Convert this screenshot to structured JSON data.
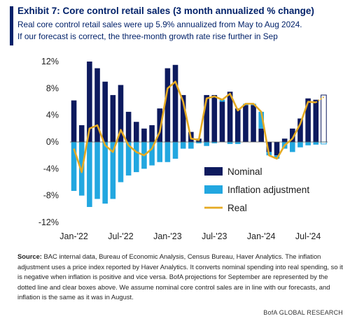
{
  "header": {
    "title": "Exhibit 7: Core control retail sales (3 month annualized % change)",
    "subtitle_lines": [
      "Real core control retail sales were up 5.9% annualized from May to Aug 2024.",
      "If our forecast is correct, the three-month growth rate rise further in Sep"
    ]
  },
  "footer": {
    "source_label": "Source:",
    "source_text": " BAC internal data, Bureau of Economic Analysis, Census Bureau, Haver Analytics. The inflation adjustment uses a price index reported by Haver Analytics. It converts nominal spending into real spending, so it is negative when inflation is positive and vice versa. BofA projections for September are represented by the dotted line and clear boxes above. We assume nominal core control sales are in line with our forecasts, and inflation is the same as it was in August.",
    "brand": "BofA GLOBAL RESEARCH"
  },
  "colors": {
    "nominal": "#0d1a5e",
    "inflation": "#22a7e0",
    "real": "#e5aa22",
    "title": "#012169"
  },
  "chart_data": {
    "type": "bar",
    "stacked": true,
    "ylim": [
      -12,
      12
    ],
    "yticks": [
      "12%",
      "8%",
      "4%",
      "0%",
      "-4%",
      "-8%",
      "-12%"
    ],
    "ytick_values": [
      12,
      8,
      4,
      0,
      -4,
      -8,
      -12
    ],
    "xtick_labels": [
      "Jan-'22",
      "Jul-'22",
      "Jan-'23",
      "Jul-'23",
      "Jan-'24",
      "Jul-'24"
    ],
    "xtick_index": [
      0,
      6,
      12,
      18,
      24,
      30
    ],
    "categories": [
      "Jan-22",
      "Feb-22",
      "Mar-22",
      "Apr-22",
      "May-22",
      "Jun-22",
      "Jul-22",
      "Aug-22",
      "Sep-22",
      "Oct-22",
      "Nov-22",
      "Dec-22",
      "Jan-23",
      "Feb-23",
      "Mar-23",
      "Apr-23",
      "May-23",
      "Jun-23",
      "Jul-23",
      "Aug-23",
      "Sep-23",
      "Oct-23",
      "Nov-23",
      "Dec-23",
      "Jan-24",
      "Feb-24",
      "Mar-24",
      "Apr-24",
      "May-24",
      "Jun-24",
      "Jul-24",
      "Aug-24",
      "Sep-24"
    ],
    "series": [
      {
        "name": "Nominal",
        "kind": "bar",
        "values": [
          6.2,
          2.5,
          12.0,
          11.0,
          9.0,
          7.0,
          8.5,
          4.5,
          3.0,
          2.0,
          2.5,
          5.0,
          11.0,
          11.5,
          7.0,
          1.5,
          0.5,
          7.0,
          7.0,
          6.0,
          7.5,
          5.0,
          5.5,
          5.5,
          2.0,
          -1.5,
          -2.0,
          0.5,
          2.0,
          3.5,
          6.5,
          6.3,
          7.0
        ]
      },
      {
        "name": "Inflation adjustment",
        "kind": "bar",
        "values": [
          -7.3,
          -8.0,
          -9.7,
          -8.5,
          -9.2,
          -8.5,
          -6.0,
          -5.0,
          -4.5,
          -4.0,
          -3.5,
          -3.0,
          -3.0,
          -2.5,
          -1.0,
          -1.0,
          -0.2,
          -0.6,
          -0.2,
          0.3,
          -0.3,
          -0.3,
          0.2,
          0.2,
          2.5,
          -0.5,
          -0.5,
          -1.0,
          -1.5,
          -0.8,
          -0.5,
          -0.4,
          -0.3
        ]
      },
      {
        "name": "Real",
        "kind": "line",
        "values": [
          -1.0,
          -4.5,
          2.0,
          2.5,
          -0.5,
          -1.5,
          1.8,
          -0.5,
          -1.5,
          -2.0,
          -1.0,
          1.5,
          8.0,
          9.0,
          6.0,
          0.5,
          0.3,
          6.5,
          6.8,
          6.3,
          7.2,
          4.7,
          5.7,
          5.7,
          4.5,
          -2.0,
          -2.5,
          -0.5,
          0.5,
          2.7,
          6.0,
          5.9,
          6.7
        ]
      }
    ],
    "forecast_index": 32,
    "legend": {
      "entries": [
        "Nominal",
        "Inflation adjustment",
        "Real"
      ],
      "position": "bottom-right"
    },
    "grid": false
  }
}
